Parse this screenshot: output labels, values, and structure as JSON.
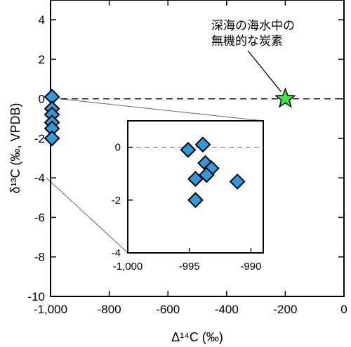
{
  "chart_data": [
    {
      "type": "scatter",
      "xlabel": "Δ¹⁴C (‰)",
      "ylabel": "δ¹³C (‰, VPDB)",
      "xlim": [
        -1000,
        0
      ],
      "ylim": [
        -10,
        5
      ],
      "xticks": [
        -1000,
        -800,
        -600,
        -400,
        -200,
        0
      ],
      "xtick_labels": [
        "-1,000",
        "-800",
        "-600",
        "-400",
        "-200",
        "0"
      ],
      "yticks": [
        4,
        2,
        0,
        -2,
        -4,
        -6,
        -8,
        -10
      ],
      "ytick_labels": [
        "4",
        "2",
        "0",
        "-2",
        "-4",
        "-6",
        "-8",
        "-10"
      ],
      "reference_line": {
        "y": 0,
        "style": "dashed"
      },
      "series": [
        {
          "marker": "diamond",
          "color": "#2e9be0",
          "points": [
            {
              "x": -995,
              "y": 0.1
            },
            {
              "x": -995,
              "y": -0.5
            },
            {
              "x": -995,
              "y": -0.8
            },
            {
              "x": -995,
              "y": -1.2
            },
            {
              "x": -995,
              "y": -1.5
            },
            {
              "x": -995,
              "y": -2.0
            }
          ]
        },
        {
          "marker": "star",
          "color": "#33ee33",
          "points": [
            {
              "x": -200,
              "y": 0
            }
          ]
        }
      ],
      "annotations": [
        {
          "text": "深海の海水中の無機的な炭素",
          "lines": [
            "深海の海水中の",
            "無機的な炭素"
          ],
          "target": {
            "x": -200,
            "y": 0
          }
        }
      ]
    },
    {
      "type": "scatter",
      "role": "inset",
      "xlim": [
        -1000,
        -989
      ],
      "ylim": [
        -4,
        1
      ],
      "xticks": [
        -1000,
        -995,
        -990
      ],
      "xtick_labels": [
        "-1,000",
        "-995",
        "-990"
      ],
      "yticks": [
        0,
        -2,
        -4
      ],
      "ytick_labels": [
        "0",
        "-2",
        "-4"
      ],
      "reference_line": {
        "y": 0,
        "style": "dashed"
      },
      "series": [
        {
          "marker": "diamond",
          "color": "#2e9be0",
          "points": [
            {
              "x": -995.1,
              "y": -0.1
            },
            {
              "x": -993.9,
              "y": 0.1
            },
            {
              "x": -993.7,
              "y": -0.6
            },
            {
              "x": -993.2,
              "y": -0.8
            },
            {
              "x": -994.5,
              "y": -1.2
            },
            {
              "x": -993.6,
              "y": -1.05
            },
            {
              "x": -994.5,
              "y": -2.0
            },
            {
              "x": -991.1,
              "y": -1.3
            }
          ]
        }
      ]
    }
  ]
}
